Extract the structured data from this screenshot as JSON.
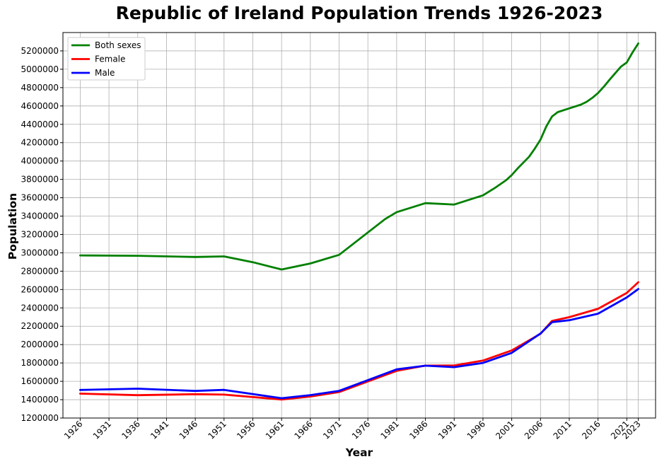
{
  "chart_data": {
    "type": "line",
    "title": "Republic of Ireland Population Trends 1926-2023",
    "xlabel": "Year",
    "ylabel": "Population",
    "ylim": [
      1200000,
      5400000
    ],
    "xlim": [
      1923,
      2026
    ],
    "grid": true,
    "legend_position": "top-left",
    "y_ticks": [
      1200000,
      1400000,
      1600000,
      1800000,
      2000000,
      2200000,
      2400000,
      2600000,
      2800000,
      3000000,
      3200000,
      3400000,
      3600000,
      3800000,
      4000000,
      4200000,
      4400000,
      4600000,
      4800000,
      5000000,
      5200000
    ],
    "x_ticks": [
      1926,
      1931,
      1936,
      1941,
      1946,
      1951,
      1956,
      1961,
      1966,
      1971,
      1976,
      1981,
      1986,
      1991,
      1996,
      2001,
      2006,
      2011,
      2016,
      2021,
      2023
    ],
    "series": [
      {
        "name": "Both sexes",
        "color": "#008000",
        "x": [
          1926,
          1936,
          1946,
          1951,
          1956,
          1961,
          1966,
          1971,
          1979,
          1981,
          1986,
          1991,
          1996,
          1998,
          2000,
          2001,
          2002,
          2004,
          2005,
          2006,
          2007,
          2008,
          2009,
          2011,
          2013,
          2014,
          2015,
          2016,
          2017,
          2018,
          2019,
          2020,
          2021,
          2022,
          2023
        ],
        "values": [
          2972000,
          2968000,
          2955000,
          2961000,
          2898000,
          2818000,
          2884000,
          2978000,
          3368000,
          3443000,
          3541000,
          3526000,
          3626000,
          3704000,
          3790000,
          3847000,
          3917000,
          4045000,
          4134000,
          4233000,
          4376000,
          4485000,
          4533000,
          4574000,
          4614000,
          4645000,
          4688000,
          4740000,
          4810000,
          4885000,
          4958000,
          5029000,
          5074000,
          5184000,
          5281000
        ]
      },
      {
        "name": "Female",
        "color": "#ff0000",
        "x": [
          1926,
          1936,
          1946,
          1951,
          1961,
          1966,
          1971,
          1981,
          1986,
          1991,
          1996,
          2001,
          2006,
          2008,
          2011,
          2016,
          2021,
          2023
        ],
        "values": [
          1466000,
          1449000,
          1460000,
          1455000,
          1402000,
          1434000,
          1483000,
          1714000,
          1771000,
          1772000,
          1826000,
          1937000,
          2118000,
          2258000,
          2299000,
          2390000,
          2563000,
          2680000
        ]
      },
      {
        "name": "Male",
        "color": "#0000ff",
        "x": [
          1926,
          1936,
          1946,
          1951,
          1961,
          1966,
          1971,
          1981,
          1986,
          1991,
          1996,
          2001,
          2006,
          2008,
          2011,
          2016,
          2021,
          2023
        ],
        "values": [
          1506000,
          1520000,
          1495000,
          1507000,
          1416000,
          1450000,
          1496000,
          1730000,
          1770000,
          1754000,
          1800000,
          1910000,
          2121000,
          2244000,
          2266000,
          2337000,
          2514000,
          2606000
        ]
      }
    ]
  }
}
